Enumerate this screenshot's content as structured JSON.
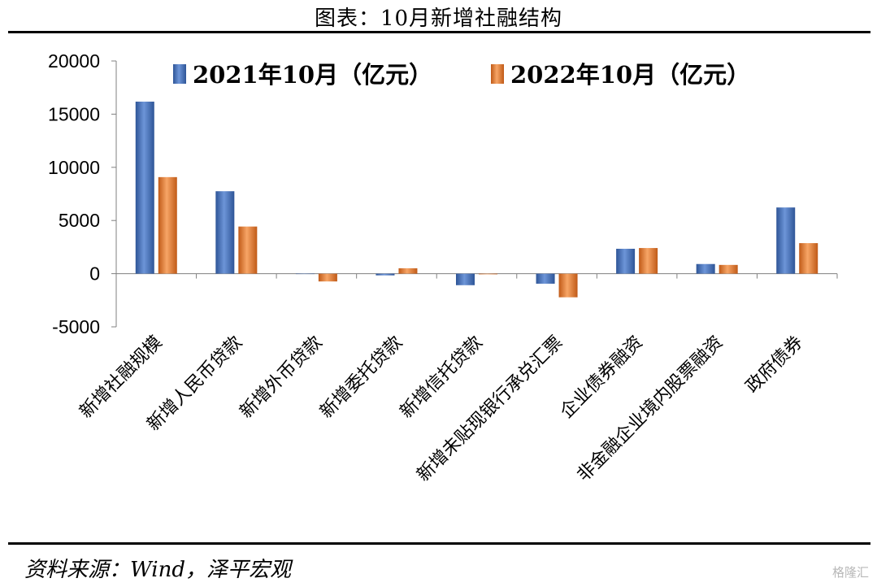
{
  "header": {
    "title": "图表：10月新增社融结构"
  },
  "footer": {
    "source": "资料来源：Wind，泽平宏观",
    "watermark": "格隆汇"
  },
  "colors": {
    "series_1": "#4472c4",
    "series_2": "#ed7d31",
    "axis": "#808080"
  },
  "chart_data": {
    "type": "bar",
    "categories": [
      "新增社融规模",
      "新增人民币贷款",
      "新增外币贷款",
      "新增委托贷款",
      "新增信托贷款",
      "新增未贴现银行承兑汇票",
      "企业债券融资",
      "非金融企业境内股票融资",
      "政府债券"
    ],
    "series": [
      {
        "name": "2021年10月（亿元）",
        "values": [
          16176,
          7752,
          -5,
          -160,
          -1084,
          -944,
          2341,
          907,
          6224
        ]
      },
      {
        "name": "2022年10月（亿元）",
        "values": [
          9079,
          4431,
          -733,
          505,
          -62,
          -2222,
          2411,
          823,
          2870
        ]
      }
    ],
    "ylim": [
      -5000,
      20000
    ],
    "yticks": [
      "-5000",
      "0",
      "5000",
      "10000",
      "15000",
      "20000"
    ],
    "legend_position": "top",
    "grid": false,
    "xlabel": "",
    "ylabel": ""
  }
}
